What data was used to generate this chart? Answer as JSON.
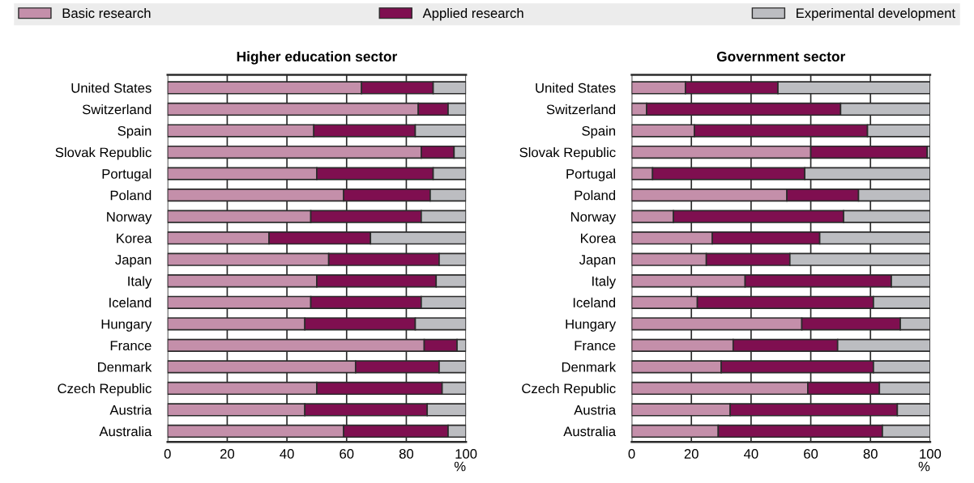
{
  "chart_data": [
    {
      "type": "bar",
      "orientation": "horizontal",
      "stacked": true,
      "title": "Higher education sector",
      "xlabel": "%",
      "legend": "top",
      "grid": "x",
      "xlim": [
        0,
        100
      ],
      "xticks": [
        0,
        20,
        40,
        60,
        80,
        100
      ],
      "categories": [
        "United States",
        "Switzerland",
        "Spain",
        "Slovak Republic",
        "Portugal",
        "Poland",
        "Norway",
        "Korea",
        "Japan",
        "Italy",
        "Iceland",
        "Hungary",
        "France",
        "Denmark",
        "Czech Republic",
        "Austria",
        "Australia"
      ],
      "series": [
        {
          "name": "Basic research",
          "color": "#c48faa",
          "values": [
            65,
            84,
            49,
            85,
            50,
            59,
            48,
            34,
            54,
            50,
            48,
            46,
            86,
            63,
            50,
            46,
            59
          ]
        },
        {
          "name": "Applied research",
          "color": "#7f0f50",
          "values": [
            24,
            10,
            34,
            11,
            39,
            29,
            37,
            34,
            37,
            40,
            37,
            37,
            11,
            28,
            42,
            41,
            35
          ]
        },
        {
          "name": "Experimental development",
          "color": "#bcbdc1",
          "values": [
            11,
            6,
            17,
            4,
            11,
            12,
            15,
            32,
            9,
            10,
            15,
            17,
            3,
            9,
            8,
            13,
            6
          ]
        }
      ]
    },
    {
      "type": "bar",
      "orientation": "horizontal",
      "stacked": true,
      "title": "Government sector",
      "xlabel": "%",
      "grid": "x",
      "xlim": [
        0,
        100
      ],
      "xticks": [
        0,
        20,
        40,
        60,
        80,
        100
      ],
      "categories": [
        "United States",
        "Switzerland",
        "Spain",
        "Slovak Republic",
        "Portugal",
        "Poland",
        "Norway",
        "Korea",
        "Japan",
        "Italy",
        "Iceland",
        "Hungary",
        "France",
        "Denmark",
        "Czech Republic",
        "Austria",
        "Australia"
      ],
      "series": [
        {
          "color": "#c48faa",
          "values": [
            18,
            5,
            21,
            60,
            7,
            52,
            14,
            27,
            25,
            38,
            22,
            57,
            34,
            30,
            59,
            33,
            29
          ]
        },
        {
          "color": "#7f0f50",
          "values": [
            31,
            65,
            58,
            39,
            51,
            24,
            57,
            36,
            28,
            49,
            59,
            33,
            35,
            51,
            24,
            56,
            55
          ]
        },
        {
          "color": "#bcbdc1",
          "values": [
            51,
            30,
            21,
            1,
            42,
            24,
            29,
            37,
            47,
            13,
            19,
            10,
            31,
            19,
            17,
            11,
            16
          ]
        }
      ]
    }
  ]
}
